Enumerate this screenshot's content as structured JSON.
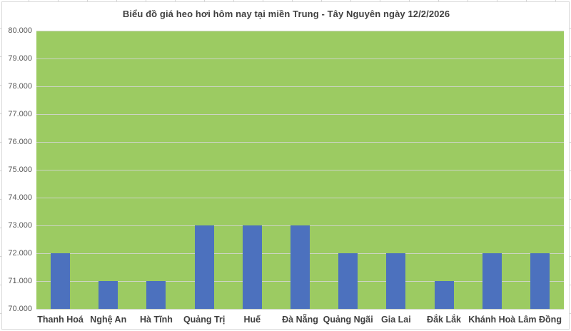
{
  "chart_data": {
    "type": "bar",
    "title": "Biểu đồ giá heo hơi hôm nay tại miền Trung - Tây Nguyên ngày 12/2/2026",
    "categories": [
      "Thanh Hoá",
      "Nghệ An",
      "Hà Tĩnh",
      "Quảng Trị",
      "Huế",
      "Đà Nẵng",
      "Quảng Ngãi",
      "Gia Lai",
      "Đắk Lắk",
      "Khánh Hoà",
      "Lâm Đồng"
    ],
    "values": [
      72000,
      71000,
      71000,
      73000,
      73000,
      73000,
      72000,
      72000,
      71000,
      72000,
      72000
    ],
    "xlabel": "",
    "ylabel": "",
    "ylim": [
      70000,
      80000
    ],
    "y_tick_step": 1000,
    "y_tick_labels": [
      "70.000",
      "71.000",
      "72.000",
      "73.000",
      "74.000",
      "75.000",
      "76.000",
      "77.000",
      "78.000",
      "79.000",
      "80.000"
    ],
    "grid": true,
    "legend_position": "none",
    "colors": {
      "bar": "#4C71BE",
      "plot_background": "#9CCB62",
      "gridline": "#CCD4C4",
      "y_axis_text": "#595959",
      "x_axis_text": "#3F3F3F",
      "title_text": "#3F3F3F",
      "chart_border": "#D9D9D9",
      "chart_background": "#FFFFFF"
    }
  }
}
